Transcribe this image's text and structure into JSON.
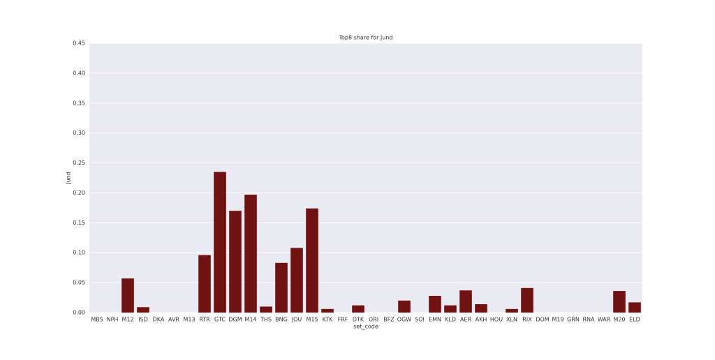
{
  "chart_data": {
    "type": "bar",
    "title": "Top8 share for Jund",
    "x_label": "set_code",
    "y_label": "Jund",
    "categories": [
      "MBS",
      "NPH",
      "M12",
      "ISD",
      "DKA",
      "AVR",
      "M13",
      "RTR",
      "GTC",
      "DGM",
      "M14",
      "THS",
      "BNG",
      "JOU",
      "M15",
      "KTK",
      "FRF",
      "DTK",
      "ORI",
      "BFZ",
      "OGW",
      "SOI",
      "EMN",
      "KLD",
      "AER",
      "AKH",
      "HOU",
      "XLN",
      "RIX",
      "DOM",
      "M19",
      "GRN",
      "RNA",
      "WAR",
      "M20",
      "ELD"
    ],
    "values": [
      0,
      0,
      0.057,
      0.009,
      0,
      0,
      0,
      0.096,
      0.235,
      0.17,
      0.197,
      0.01,
      0.083,
      0.108,
      0.174,
      0.006,
      0,
      0.012,
      0,
      0,
      0.02,
      0,
      0.028,
      0.012,
      0.037,
      0.014,
      0,
      0.006,
      0.041,
      0,
      0,
      0,
      0,
      0,
      0.036,
      0.017
    ],
    "color": "#701212",
    "ylim": [
      0,
      0.45
    ],
    "yticks": [
      {
        "value": 0,
        "label": "0.00"
      },
      {
        "value": 0.05,
        "label": "0.05"
      },
      {
        "value": 0.1,
        "label": "0.10"
      },
      {
        "value": 0.15,
        "label": "0.15"
      },
      {
        "value": 0.2,
        "label": "0.20"
      },
      {
        "value": 0.25,
        "label": "0.25"
      },
      {
        "value": 0.3,
        "label": "0.30"
      },
      {
        "value": 0.35,
        "label": "0.35"
      },
      {
        "value": 0.4,
        "label": "0.40"
      },
      {
        "value": 0.45,
        "label": "0.45"
      }
    ],
    "grid": true
  }
}
